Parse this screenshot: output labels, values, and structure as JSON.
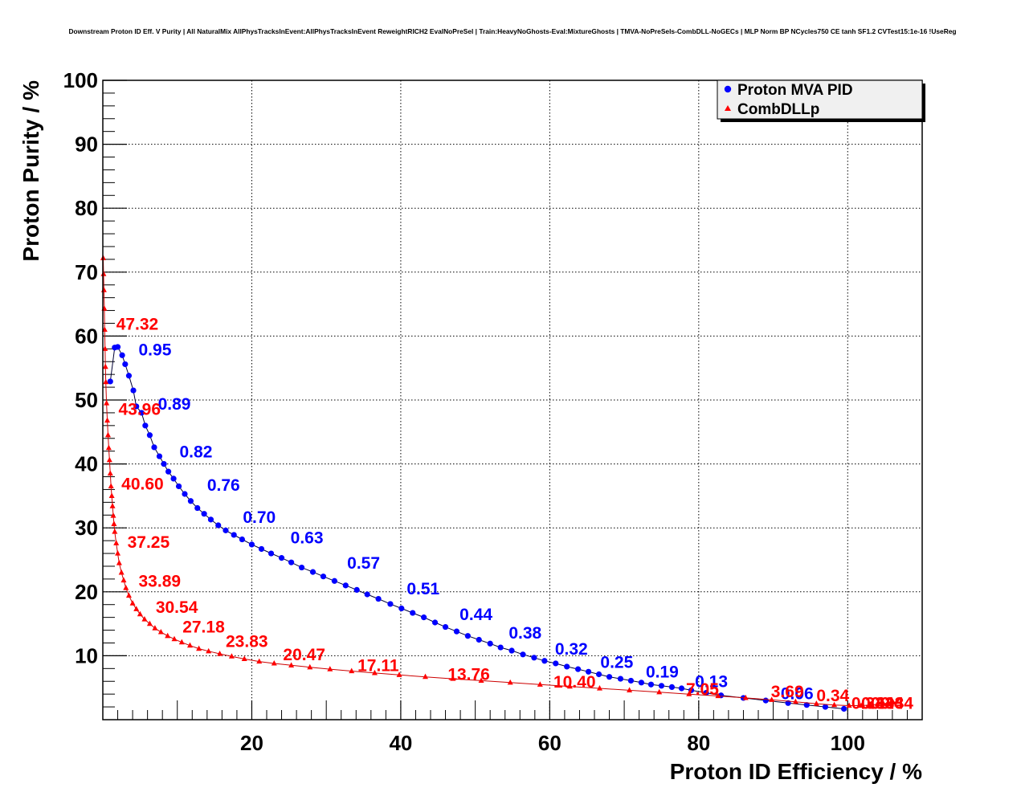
{
  "title": "Downstream Proton ID Eff. V Purity | All NaturalMix AllPhysTracksInEvent:AllPhysTracksInEvent ReweightRICH2 EvalNoPreSel | Train:HeavyNoGhosts-Eval:MixtureGhosts | TMVA-NoPreSels-CombDLL-NoGECs | MLP Norm BP NCycles750 CE tanh SF1.2 CVTest15:1e-16 !UseReg",
  "chart_data": {
    "type": "line",
    "xlabel": "Proton ID Efficiency / %",
    "ylabel": "Proton Purity / %",
    "xlim": [
      0,
      110
    ],
    "ylim": [
      0,
      100
    ],
    "x_ticks": [
      20,
      40,
      60,
      80,
      100
    ],
    "y_ticks": [
      10,
      20,
      30,
      40,
      50,
      60,
      70,
      80,
      90,
      100
    ],
    "grid": true,
    "legend_position": "top-right",
    "series": [
      {
        "name": "Proton MVA PID",
        "color": "#0000ff",
        "marker": "circle",
        "x": [
          1.0,
          1.6,
          2.0,
          2.6,
          3.0,
          3.5,
          4.1,
          4.5,
          5.2,
          5.7,
          6.3,
          6.9,
          7.6,
          8.2,
          8.8,
          9.5,
          10.2,
          11.0,
          11.8,
          12.7,
          13.6,
          14.5,
          15.5,
          16.5,
          17.6,
          18.7,
          20.0,
          21.3,
          22.6,
          24.0,
          25.3,
          26.7,
          28.2,
          29.6,
          31.1,
          32.6,
          34.1,
          35.5,
          37.0,
          38.6,
          40.1,
          41.6,
          43.1,
          44.6,
          46.0,
          47.5,
          49.0,
          50.5,
          52.0,
          53.4,
          54.9,
          56.4,
          57.9,
          59.3,
          60.8,
          62.3,
          63.8,
          65.2,
          66.6,
          68.0,
          69.5,
          70.9,
          72.3,
          73.6,
          75.0,
          76.4,
          77.7,
          79.0,
          81.0,
          83.0,
          86.0,
          89.0,
          92.0,
          94.5,
          97.0,
          99.5
        ],
        "y": [
          52.9,
          58.2,
          58.3,
          57.0,
          55.6,
          53.8,
          51.5,
          49.0,
          48.0,
          46.0,
          44.5,
          42.6,
          41.2,
          40.0,
          38.8,
          37.7,
          36.5,
          35.3,
          34.2,
          33.1,
          32.2,
          31.3,
          30.4,
          29.6,
          28.9,
          28.2,
          27.4,
          26.7,
          26.0,
          25.3,
          24.6,
          23.8,
          23.1,
          22.4,
          21.7,
          21.0,
          20.3,
          19.6,
          18.9,
          18.1,
          17.4,
          16.7,
          16.0,
          15.2,
          14.5,
          13.8,
          13.1,
          12.5,
          11.9,
          11.3,
          10.8,
          10.2,
          9.7,
          9.2,
          8.8,
          8.3,
          7.9,
          7.5,
          7.1,
          6.7,
          6.4,
          6.1,
          5.8,
          5.5,
          5.3,
          5.1,
          4.9,
          4.6,
          4.2,
          3.8,
          3.4,
          3.0,
          2.6,
          2.3,
          2.0,
          1.7
        ],
        "annotations": [
          {
            "text": "0.95",
            "x": 4.8,
            "y": 57.0
          },
          {
            "text": "0.89",
            "x": 7.4,
            "y": 48.5
          },
          {
            "text": "0.82",
            "x": 10.3,
            "y": 41.0
          },
          {
            "text": "0.76",
            "x": 14.0,
            "y": 35.8
          },
          {
            "text": "0.70",
            "x": 18.8,
            "y": 30.8
          },
          {
            "text": "0.63",
            "x": 25.2,
            "y": 27.6
          },
          {
            "text": "0.57",
            "x": 32.8,
            "y": 23.6
          },
          {
            "text": "0.51",
            "x": 40.8,
            "y": 19.6
          },
          {
            "text": "0.44",
            "x": 47.9,
            "y": 15.6
          },
          {
            "text": "0.38",
            "x": 54.5,
            "y": 12.7
          },
          {
            "text": "0.32",
            "x": 60.7,
            "y": 10.2
          },
          {
            "text": "0.25",
            "x": 66.8,
            "y": 8.1
          },
          {
            "text": "0.19",
            "x": 72.9,
            "y": 6.6
          },
          {
            "text": "0.13",
            "x": 79.5,
            "y": 5.1
          },
          {
            "text": "0.06",
            "x": 91.0,
            "y": 3.2
          }
        ]
      },
      {
        "name": "CombDLLp",
        "color": "#ff0000",
        "marker": "triangle",
        "x": [
          0.05,
          0.1,
          0.15,
          0.2,
          0.25,
          0.3,
          0.35,
          0.4,
          0.5,
          0.6,
          0.7,
          0.8,
          0.9,
          1.0,
          1.1,
          1.2,
          1.3,
          1.4,
          1.5,
          1.6,
          1.8,
          2.0,
          2.2,
          2.5,
          2.8,
          3.1,
          3.5,
          4.0,
          4.5,
          5.0,
          5.6,
          6.3,
          7.0,
          7.8,
          8.7,
          9.6,
          10.6,
          11.7,
          12.9,
          14.2,
          15.7,
          17.3,
          19.0,
          21.0,
          23.0,
          25.3,
          27.8,
          30.5,
          33.4,
          36.5,
          39.8,
          43.3,
          47.0,
          50.8,
          54.7,
          58.7,
          62.7,
          66.7,
          70.7,
          74.7,
          78.7,
          82.6,
          86.3,
          89.8,
          93.0,
          95.8,
          98.2,
          100.2,
          101.8,
          103.0,
          104.0,
          104.8,
          105.5,
          106.1,
          106.6
        ],
        "y": [
          72.2,
          69.7,
          67.2,
          64.3,
          61.0,
          58.0,
          55.2,
          52.8,
          49.5,
          46.8,
          44.5,
          42.5,
          40.6,
          38.5,
          36.5,
          35.0,
          33.4,
          31.9,
          30.6,
          29.4,
          27.6,
          26.0,
          24.5,
          23.0,
          21.8,
          20.6,
          19.4,
          18.2,
          17.3,
          16.5,
          15.7,
          15.0,
          14.3,
          13.7,
          13.1,
          12.6,
          12.1,
          11.6,
          11.1,
          10.7,
          10.3,
          9.9,
          9.5,
          9.1,
          8.8,
          8.5,
          8.2,
          7.9,
          7.6,
          7.3,
          7.0,
          6.7,
          6.4,
          6.1,
          5.8,
          5.5,
          5.2,
          4.9,
          4.6,
          4.3,
          4.0,
          3.7,
          3.4,
          3.1,
          2.8,
          2.5,
          2.3,
          2.2,
          2.2,
          2.3,
          2.4,
          2.5,
          2.6,
          2.7,
          2.8
        ],
        "annotations": [
          {
            "text": "47.32",
            "x": 1.8,
            "y": 61.0
          },
          {
            "text": "43.96",
            "x": 2.1,
            "y": 47.7
          },
          {
            "text": "40.60",
            "x": 2.5,
            "y": 36.0
          },
          {
            "text": "37.25",
            "x": 3.3,
            "y": 26.9
          },
          {
            "text": "33.89",
            "x": 4.8,
            "y": 20.8
          },
          {
            "text": "30.54",
            "x": 7.1,
            "y": 16.7
          },
          {
            "text": "27.18",
            "x": 10.7,
            "y": 13.6
          },
          {
            "text": "23.83",
            "x": 16.5,
            "y": 11.4
          },
          {
            "text": "20.47",
            "x": 24.2,
            "y": 9.3
          },
          {
            "text": "17.11",
            "x": 34.2,
            "y": 7.6
          },
          {
            "text": "13.76",
            "x": 46.3,
            "y": 6.2
          },
          {
            "text": "10.40",
            "x": 60.5,
            "y": 5.0
          },
          {
            "text": "7.05",
            "x": 78.3,
            "y": 3.9
          },
          {
            "text": "3.69",
            "x": 89.7,
            "y": 3.5
          },
          {
            "text": "0.34",
            "x": 95.8,
            "y": 2.9
          }
        ]
      }
    ]
  }
}
